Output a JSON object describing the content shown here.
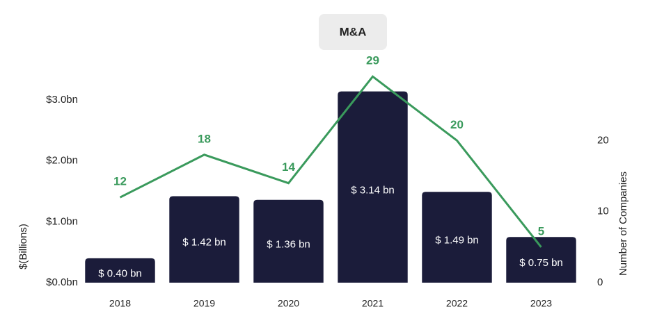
{
  "chart_data": {
    "type": "bar",
    "title": "M&A",
    "y_label": "$(Billions)",
    "y2_label": "Number of Companies",
    "categories": [
      "2018",
      "2019",
      "2020",
      "2021",
      "2022",
      "2023"
    ],
    "series": [
      {
        "type": "bar",
        "color": "#1b1c3a",
        "values": [
          0.4,
          1.42,
          1.36,
          3.14,
          1.49,
          0.75
        ],
        "value_labels": [
          "$ 0.40 bn",
          "$ 1.42 bn",
          "$ 1.36 bn",
          "$ 3.14 bn",
          "$ 1.49 bn",
          "$ 0.75 bn"
        ]
      },
      {
        "type": "line",
        "axis": "y2",
        "color": "#3a9a5c",
        "values": [
          12,
          18,
          14,
          29,
          20,
          5
        ]
      }
    ],
    "ylim": [
      0,
      3.5
    ],
    "yticks": [
      {
        "value": 0,
        "label": "$0.0bn"
      },
      {
        "value": 1,
        "label": "$1.0bn"
      },
      {
        "value": 2,
        "label": "$2.0bn"
      },
      {
        "value": 3,
        "label": "$3.0bn"
      }
    ],
    "y2lim": [
      0,
      30
    ],
    "y2ticks": [
      0,
      10,
      20
    ],
    "grid": false
  }
}
